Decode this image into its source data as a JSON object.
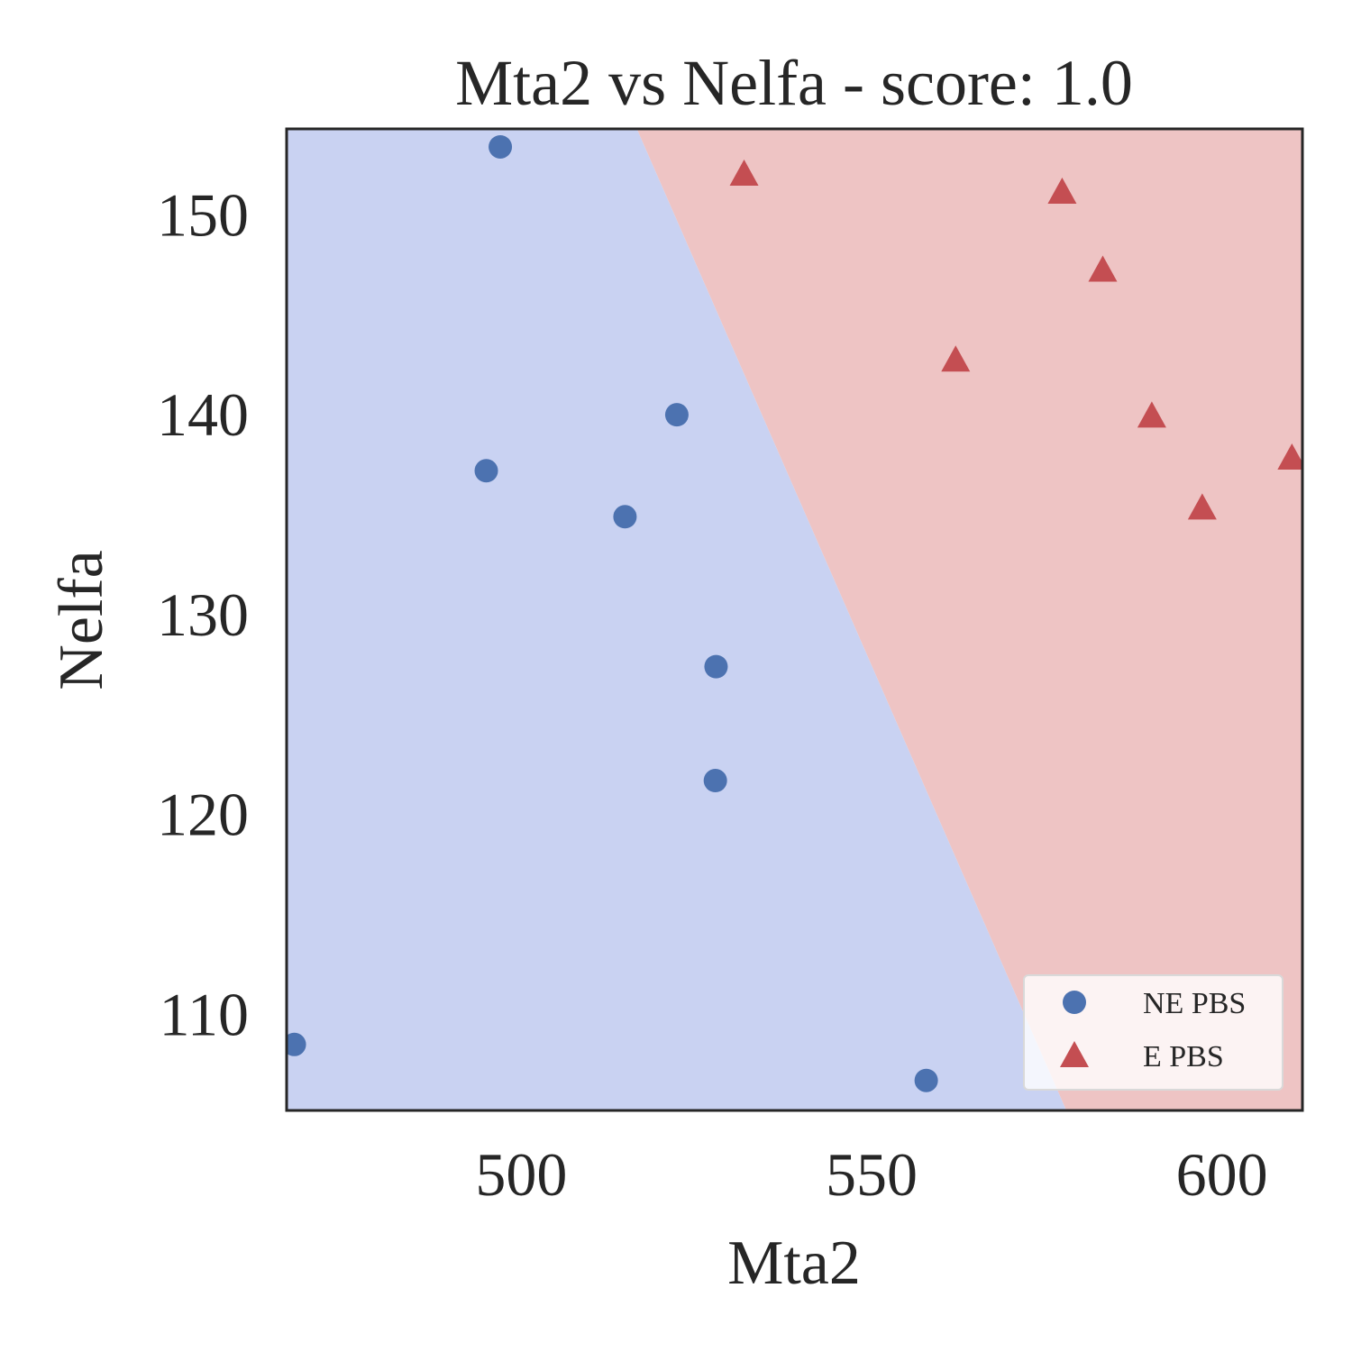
{
  "chart_data": {
    "type": "scatter",
    "title": "Mta2 vs Nelfa - score: 1.0",
    "xlabel": "Mta2",
    "ylabel": "Nelfa",
    "xlim": [
      466.5,
      611.5
    ],
    "ylim": [
      105.2,
      154.3
    ],
    "xticks": [
      500,
      550,
      600
    ],
    "yticks": [
      110,
      120,
      130,
      140,
      150
    ],
    "xtick_labels": [
      "500",
      "550",
      "600"
    ],
    "ytick_labels": [
      "110",
      "120",
      "130",
      "140",
      "150"
    ],
    "grid": false,
    "legend_position": "bottom-right",
    "decision_boundary": [
      [
        516.5,
        154.3
      ],
      [
        577.8,
        105.2
      ]
    ],
    "regions": [
      {
        "class": "NE PBS",
        "side": "left",
        "color": "#c9d2f2"
      },
      {
        "class": "E PBS",
        "side": "right",
        "color": "#eec4c4"
      }
    ],
    "series": [
      {
        "name": "NE PBS",
        "marker": "circle",
        "color": "#4c72b0",
        "points": [
          [
            497.0,
            153.4
          ],
          [
            495.0,
            137.2
          ],
          [
            514.8,
            134.9
          ],
          [
            522.2,
            140.0
          ],
          [
            527.8,
            127.4
          ],
          [
            527.7,
            121.7
          ],
          [
            467.6,
            108.5
          ],
          [
            557.8,
            106.7
          ]
        ]
      },
      {
        "name": "E PBS",
        "marker": "triangle",
        "color": "#c44e52",
        "points": [
          [
            531.8,
            152.0
          ],
          [
            577.2,
            151.1
          ],
          [
            583.0,
            147.2
          ],
          [
            562.0,
            142.7
          ],
          [
            590.0,
            139.9
          ],
          [
            597.2,
            135.3
          ],
          [
            610.0,
            137.8
          ]
        ]
      }
    ]
  }
}
